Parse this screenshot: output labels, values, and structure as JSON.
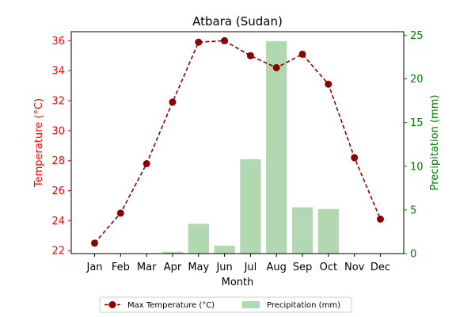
{
  "chart_data": {
    "type": "bar+line",
    "title": "Atbara (Sudan)",
    "xlabel": "Month",
    "ylabel_left": "Temperature (°C)",
    "ylabel_right": "Precipitation (mm)",
    "categories": [
      "Jan",
      "Feb",
      "Mar",
      "Apr",
      "May",
      "Jun",
      "Jul",
      "Aug",
      "Sep",
      "Oct",
      "Nov",
      "Dec"
    ],
    "ylim_left": [
      21.8,
      36.6
    ],
    "ylim_right": [
      0,
      25.4
    ],
    "yticks_left": [
      22,
      24,
      26,
      28,
      30,
      32,
      34,
      36
    ],
    "yticks_right": [
      0,
      5,
      10,
      15,
      20,
      25
    ],
    "grid": false,
    "legend_position": "bottom-center",
    "series": [
      {
        "name": "Max Temperature (°C)",
        "type": "line",
        "axis": "left",
        "values": [
          22.5,
          24.5,
          27.8,
          31.9,
          35.9,
          36.0,
          35.0,
          34.2,
          35.1,
          33.1,
          28.2,
          24.1
        ]
      },
      {
        "name": "Precipitation (mm)",
        "type": "bar",
        "axis": "right",
        "values": [
          0,
          0,
          0,
          0.2,
          3.4,
          0.9,
          10.8,
          24.3,
          5.3,
          5.1,
          0,
          0
        ]
      }
    ],
    "colors": {
      "temperature": "#8b0000",
      "precipitation": "#b2d8b2",
      "left_axis": "#ff0000",
      "right_axis": "#008000"
    }
  }
}
